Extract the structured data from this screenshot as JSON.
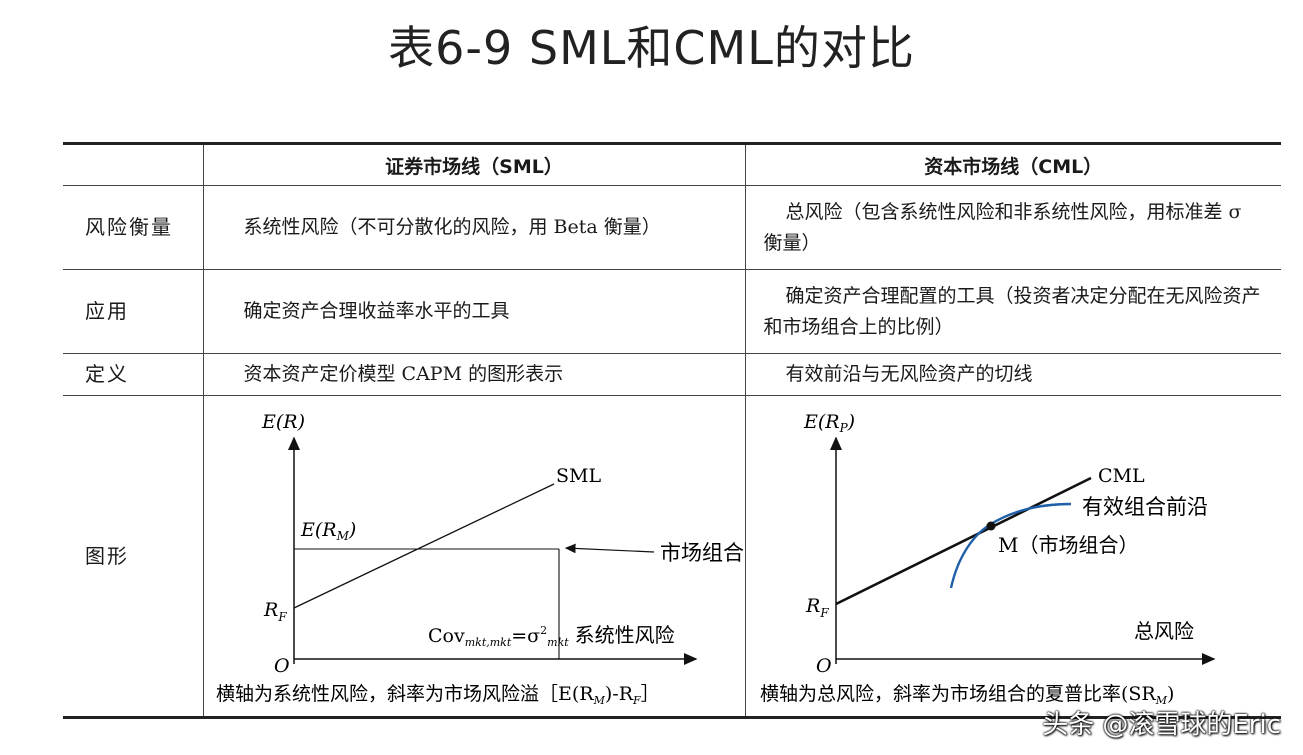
{
  "title": "表6-9 SML和CML的对比",
  "table": {
    "headers": [
      "",
      "证券市场线（SML）",
      "资本市场线（CML）"
    ],
    "rows": [
      {
        "label": "风险衡量",
        "sml": "系统性风险（不可分散化的风险，用 Beta 衡量）",
        "cml": "总风险（包含系统性风险和非系统性风险，用标准差 σ 衡量）"
      },
      {
        "label": "应用",
        "sml": "确定资产合理收益率水平的工具",
        "cml": "确定资产合理配置的工具（投资者决定分配在无风险资产和市场组合上的比例）"
      },
      {
        "label": "定义",
        "sml": "资本资产定价模型 CAPM 的图形表示",
        "cml": "有效前沿与无风险资产的切线"
      },
      {
        "label": "图形"
      }
    ]
  },
  "sml_figure": {
    "y_axis_label": "E(R)",
    "line_label": "SML",
    "erm_label": "E(R",
    "erm_sub": "M",
    "rf_label": "R",
    "rf_sub": "F",
    "origin_label": "O",
    "market_label": "市场组合",
    "cov_label": "Cov",
    "cov_sub": "mkt,mkt",
    "cov_eq": "=σ",
    "cov_sup": "2",
    "cov_sub2": "mkt",
    "x_label": "系统性风险",
    "caption": "横轴为系统性风险，斜率为市场风险溢［E(R",
    "caption_sub": "M",
    "caption_end": ")-R",
    "caption_sub2": "F",
    "caption_close": "］"
  },
  "cml_figure": {
    "y_axis_label": "E(R",
    "y_axis_sub": "P",
    "line_label": "CML",
    "frontier_label": "有效组合前沿",
    "market_point_label": "M（市场组合）",
    "rf_label": "R",
    "rf_sub": "F",
    "origin_label": "O",
    "x_label": "总风险",
    "caption": "横轴为总风险，斜率为市场组合的夏普比率(SR",
    "caption_sub": "M",
    "caption_close": ")"
  },
  "watermark": "头条 @滚雪球的Eric",
  "colors": {
    "frontier": "#1f5fa8",
    "line": "#111111"
  }
}
